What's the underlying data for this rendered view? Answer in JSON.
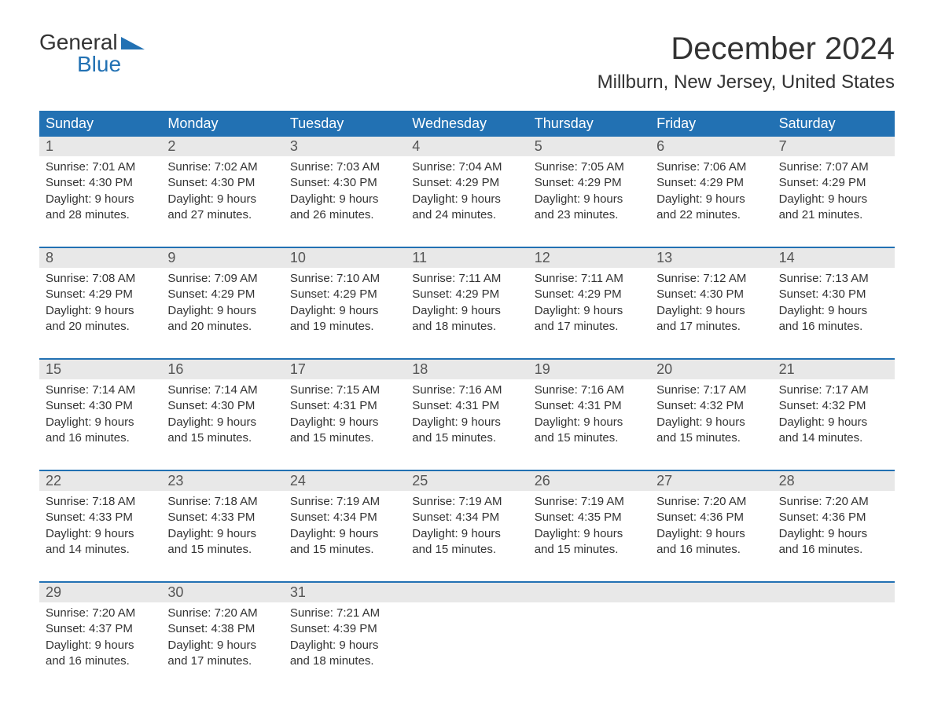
{
  "logo": {
    "top": "General",
    "bottom": "Blue"
  },
  "title": "December 2024",
  "location": "Millburn, New Jersey, United States",
  "colors": {
    "header_bg": "#2271b3",
    "header_text": "#ffffff",
    "daynum_bg": "#e8e8e8",
    "week_border": "#2271b3",
    "logo_blue": "#2271b3",
    "body_text": "#333333",
    "background": "#ffffff"
  },
  "typography": {
    "title_fontsize": 40,
    "location_fontsize": 24,
    "dayheader_fontsize": 18,
    "daynum_fontsize": 18,
    "cell_fontsize": 15
  },
  "dayheaders": [
    "Sunday",
    "Monday",
    "Tuesday",
    "Wednesday",
    "Thursday",
    "Friday",
    "Saturday"
  ],
  "weeks": [
    [
      {
        "n": "1",
        "sunrise": "7:01 AM",
        "sunset": "4:30 PM",
        "dl1": "Daylight: 9 hours",
        "dl2": "and 28 minutes."
      },
      {
        "n": "2",
        "sunrise": "7:02 AM",
        "sunset": "4:30 PM",
        "dl1": "Daylight: 9 hours",
        "dl2": "and 27 minutes."
      },
      {
        "n": "3",
        "sunrise": "7:03 AM",
        "sunset": "4:30 PM",
        "dl1": "Daylight: 9 hours",
        "dl2": "and 26 minutes."
      },
      {
        "n": "4",
        "sunrise": "7:04 AM",
        "sunset": "4:29 PM",
        "dl1": "Daylight: 9 hours",
        "dl2": "and 24 minutes."
      },
      {
        "n": "5",
        "sunrise": "7:05 AM",
        "sunset": "4:29 PM",
        "dl1": "Daylight: 9 hours",
        "dl2": "and 23 minutes."
      },
      {
        "n": "6",
        "sunrise": "7:06 AM",
        "sunset": "4:29 PM",
        "dl1": "Daylight: 9 hours",
        "dl2": "and 22 minutes."
      },
      {
        "n": "7",
        "sunrise": "7:07 AM",
        "sunset": "4:29 PM",
        "dl1": "Daylight: 9 hours",
        "dl2": "and 21 minutes."
      }
    ],
    [
      {
        "n": "8",
        "sunrise": "7:08 AM",
        "sunset": "4:29 PM",
        "dl1": "Daylight: 9 hours",
        "dl2": "and 20 minutes."
      },
      {
        "n": "9",
        "sunrise": "7:09 AM",
        "sunset": "4:29 PM",
        "dl1": "Daylight: 9 hours",
        "dl2": "and 20 minutes."
      },
      {
        "n": "10",
        "sunrise": "7:10 AM",
        "sunset": "4:29 PM",
        "dl1": "Daylight: 9 hours",
        "dl2": "and 19 minutes."
      },
      {
        "n": "11",
        "sunrise": "7:11 AM",
        "sunset": "4:29 PM",
        "dl1": "Daylight: 9 hours",
        "dl2": "and 18 minutes."
      },
      {
        "n": "12",
        "sunrise": "7:11 AM",
        "sunset": "4:29 PM",
        "dl1": "Daylight: 9 hours",
        "dl2": "and 17 minutes."
      },
      {
        "n": "13",
        "sunrise": "7:12 AM",
        "sunset": "4:30 PM",
        "dl1": "Daylight: 9 hours",
        "dl2": "and 17 minutes."
      },
      {
        "n": "14",
        "sunrise": "7:13 AM",
        "sunset": "4:30 PM",
        "dl1": "Daylight: 9 hours",
        "dl2": "and 16 minutes."
      }
    ],
    [
      {
        "n": "15",
        "sunrise": "7:14 AM",
        "sunset": "4:30 PM",
        "dl1": "Daylight: 9 hours",
        "dl2": "and 16 minutes."
      },
      {
        "n": "16",
        "sunrise": "7:14 AM",
        "sunset": "4:30 PM",
        "dl1": "Daylight: 9 hours",
        "dl2": "and 15 minutes."
      },
      {
        "n": "17",
        "sunrise": "7:15 AM",
        "sunset": "4:31 PM",
        "dl1": "Daylight: 9 hours",
        "dl2": "and 15 minutes."
      },
      {
        "n": "18",
        "sunrise": "7:16 AM",
        "sunset": "4:31 PM",
        "dl1": "Daylight: 9 hours",
        "dl2": "and 15 minutes."
      },
      {
        "n": "19",
        "sunrise": "7:16 AM",
        "sunset": "4:31 PM",
        "dl1": "Daylight: 9 hours",
        "dl2": "and 15 minutes."
      },
      {
        "n": "20",
        "sunrise": "7:17 AM",
        "sunset": "4:32 PM",
        "dl1": "Daylight: 9 hours",
        "dl2": "and 15 minutes."
      },
      {
        "n": "21",
        "sunrise": "7:17 AM",
        "sunset": "4:32 PM",
        "dl1": "Daylight: 9 hours",
        "dl2": "and 14 minutes."
      }
    ],
    [
      {
        "n": "22",
        "sunrise": "7:18 AM",
        "sunset": "4:33 PM",
        "dl1": "Daylight: 9 hours",
        "dl2": "and 14 minutes."
      },
      {
        "n": "23",
        "sunrise": "7:18 AM",
        "sunset": "4:33 PM",
        "dl1": "Daylight: 9 hours",
        "dl2": "and 15 minutes."
      },
      {
        "n": "24",
        "sunrise": "7:19 AM",
        "sunset": "4:34 PM",
        "dl1": "Daylight: 9 hours",
        "dl2": "and 15 minutes."
      },
      {
        "n": "25",
        "sunrise": "7:19 AM",
        "sunset": "4:34 PM",
        "dl1": "Daylight: 9 hours",
        "dl2": "and 15 minutes."
      },
      {
        "n": "26",
        "sunrise": "7:19 AM",
        "sunset": "4:35 PM",
        "dl1": "Daylight: 9 hours",
        "dl2": "and 15 minutes."
      },
      {
        "n": "27",
        "sunrise": "7:20 AM",
        "sunset": "4:36 PM",
        "dl1": "Daylight: 9 hours",
        "dl2": "and 16 minutes."
      },
      {
        "n": "28",
        "sunrise": "7:20 AM",
        "sunset": "4:36 PM",
        "dl1": "Daylight: 9 hours",
        "dl2": "and 16 minutes."
      }
    ],
    [
      {
        "n": "29",
        "sunrise": "7:20 AM",
        "sunset": "4:37 PM",
        "dl1": "Daylight: 9 hours",
        "dl2": "and 16 minutes."
      },
      {
        "n": "30",
        "sunrise": "7:20 AM",
        "sunset": "4:38 PM",
        "dl1": "Daylight: 9 hours",
        "dl2": "and 17 minutes."
      },
      {
        "n": "31",
        "sunrise": "7:21 AM",
        "sunset": "4:39 PM",
        "dl1": "Daylight: 9 hours",
        "dl2": "and 18 minutes."
      },
      null,
      null,
      null,
      null
    ]
  ],
  "labels": {
    "sunrise": "Sunrise: ",
    "sunset": "Sunset: "
  }
}
